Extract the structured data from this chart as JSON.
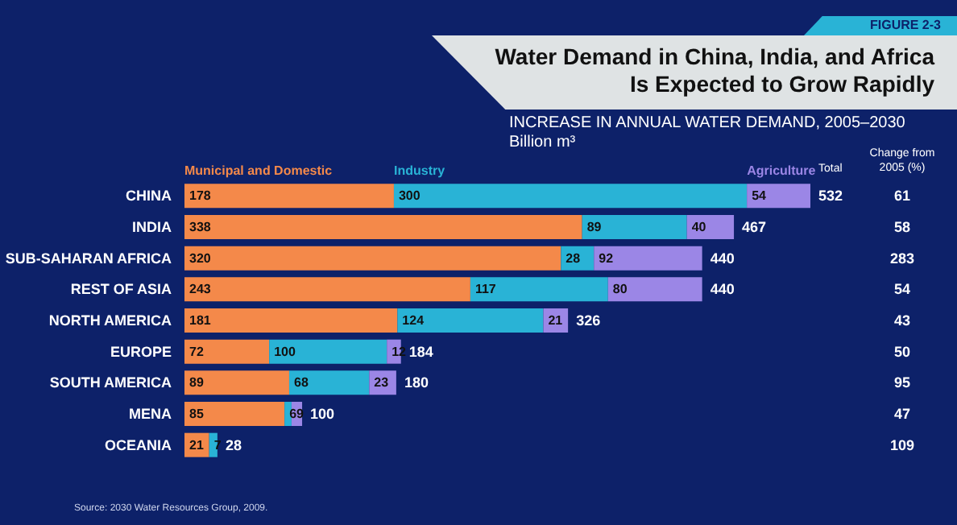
{
  "chart_data": {
    "type": "bar",
    "orientation": "horizontal",
    "stacked": true,
    "title": "Water Demand in China, India, and Africa\nIs Expected to Grow Rapidly",
    "subtitle": "INCREASE IN ANNUAL WATER DEMAND, 2005–2030\nBillion m³",
    "categories": [
      "CHINA",
      "INDIA",
      "SUB-SAHARAN AFRICA",
      "REST OF ASIA",
      "NORTH AMERICA",
      "EUROPE",
      "SOUTH AMERICA",
      "MENA",
      "OCEANIA"
    ],
    "series": [
      {
        "name": "Municipal and Domestic",
        "color": "#f4894a",
        "values": [
          178,
          338,
          320,
          243,
          181,
          72,
          89,
          85,
          21
        ]
      },
      {
        "name": "Industry",
        "color": "#29b3d6",
        "values": [
          300,
          89,
          28,
          117,
          124,
          100,
          68,
          6,
          7
        ]
      },
      {
        "name": "Agriculture",
        "color": "#9b86e6",
        "values": [
          54,
          40,
          92,
          80,
          21,
          12,
          23,
          9,
          null
        ]
      }
    ],
    "data_labels": true,
    "totals": [
      "532",
      "467",
      "440",
      "440",
      "326",
      "184",
      "180",
      "100",
      "28"
    ],
    "legend": "top",
    "annotations": [
      "FIGURE 2-3",
      "Total",
      "Change from\n2005 (%)",
      "61",
      "58",
      "283",
      "54",
      "43",
      "50",
      "95",
      "47",
      "109",
      "Source: 2030 Water Resources Group, 2009."
    ]
  }
}
